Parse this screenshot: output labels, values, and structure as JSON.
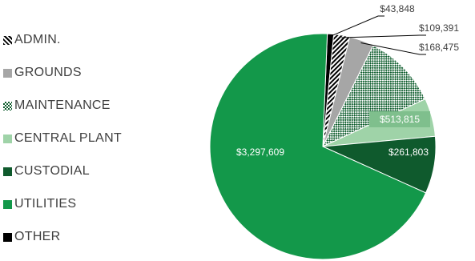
{
  "chart_data": {
    "type": "pie",
    "title": "",
    "legend_position": "left",
    "categories": [
      "ADMIN.",
      "GROUNDS",
      "MAINTENANCE",
      "CENTRAL PLANT",
      "CUSTODIAL",
      "UTILITIES",
      "OTHER"
    ],
    "slices": [
      {
        "category": "OTHER",
        "value": 43848,
        "label": "$43,848",
        "color": "#000000",
        "pattern": "solid"
      },
      {
        "category": "ADMIN.",
        "value": 109391,
        "label": "$109,391",
        "color": "#000000",
        "pattern": "diagonal-black-white"
      },
      {
        "category": "GROUNDS",
        "value": 168475,
        "label": "$168,475",
        "color": "#a6a6a6",
        "pattern": "solid"
      },
      {
        "category": "MAINTENANCE",
        "value": 513815,
        "label": "$513,815",
        "color": "#0d5c2c",
        "pattern": "checker-green"
      },
      {
        "category": "CENTRAL PLANT",
        "value": 261803,
        "label": "$261,803",
        "color": "#9fd3a8",
        "pattern": "solid"
      },
      {
        "category": "CUSTODIAL",
        "value": 391000,
        "label": "",
        "color": "#0f5a2d",
        "pattern": "solid"
      },
      {
        "category": "UTILITIES",
        "value": 3297609,
        "label": "$3,297,609",
        "color": "#13984a",
        "pattern": "solid"
      }
    ]
  },
  "legend": [
    {
      "label": "ADMIN.",
      "color": "#000000",
      "pattern": "diagonal-black-white",
      "icon": "hatched-square"
    },
    {
      "label": "GROUNDS",
      "color": "#a6a6a6",
      "pattern": "solid",
      "icon": "square"
    },
    {
      "label": "MAINTENANCE",
      "color": "#0d5c2c",
      "pattern": "checker-green",
      "icon": "checkered-square"
    },
    {
      "label": "CENTRAL PLANT",
      "color": "#9fd3a8",
      "pattern": "solid",
      "icon": "square"
    },
    {
      "label": "CUSTODIAL",
      "color": "#0f5a2d",
      "pattern": "solid",
      "icon": "square"
    },
    {
      "label": "UTILITIES",
      "color": "#13984a",
      "pattern": "solid",
      "icon": "square"
    },
    {
      "label": "OTHER",
      "color": "#000000",
      "pattern": "solid",
      "icon": "square"
    }
  ]
}
